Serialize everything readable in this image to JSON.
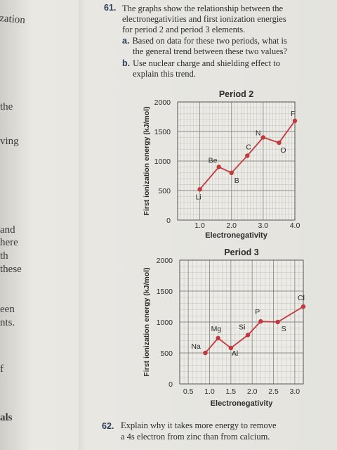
{
  "margin_fragments": [
    "zation",
    "the",
    "ving",
    "and",
    "here",
    "th",
    "these",
    "een",
    "nts.",
    "f",
    "als"
  ],
  "question_61": {
    "number": "61.",
    "stem_lines": [
      "The graphs show the relationship between the",
      "electronegativities and first ionization energies",
      "for period 2 and period 3 elements."
    ],
    "part_a_letter": "a.",
    "part_a_lines": [
      "Based on data for these two periods, what is",
      "the general trend between these two values?"
    ],
    "part_b_letter": "b.",
    "part_b_lines": [
      "Use nuclear charge and shielding effect to",
      "explain this trend."
    ]
  },
  "question_62": {
    "number": "62.",
    "lines": [
      "Explain why it takes more energy to remove",
      "a 4s electron from zinc than from calcium."
    ]
  },
  "colors": {
    "marker": "#c2393d",
    "line": "#c2393d",
    "grid": "#b9b8b3",
    "plot_bg": "#ecebe6"
  },
  "chart_data": [
    {
      "type": "line",
      "title": "Period 2",
      "xlabel": "Electronegativity",
      "ylabel": "First ionization energy (kJ/mol)",
      "xticks": [
        "1.0",
        "2.0",
        "3.0",
        "4.0"
      ],
      "xtick_values": [
        1.0,
        2.0,
        3.0,
        4.0
      ],
      "yticks": [
        "0",
        "500",
        "1000",
        "1500",
        "2000"
      ],
      "ytick_values": [
        0,
        500,
        1000,
        1500,
        2000
      ],
      "xlim": [
        0.3,
        4.0
      ],
      "ylim": [
        0,
        2000
      ],
      "grid": true,
      "series": [
        {
          "points": [
            {
              "label": "Li",
              "x": 1.0,
              "y": 520
            },
            {
              "label": "Be",
              "x": 1.6,
              "y": 900
            },
            {
              "label": "B",
              "x": 2.0,
              "y": 800
            },
            {
              "label": "C",
              "x": 2.5,
              "y": 1090
            },
            {
              "label": "N",
              "x": 3.0,
              "y": 1400
            },
            {
              "label": "O",
              "x": 3.5,
              "y": 1310
            },
            {
              "label": "F",
              "x": 4.0,
              "y": 1680
            }
          ]
        }
      ]
    },
    {
      "type": "line",
      "title": "Period 3",
      "xlabel": "Electronegativity",
      "ylabel": "First ionization energy (kJ/mol)",
      "xticks": [
        "0.5",
        "1.0",
        "1.5",
        "2.0",
        "2.5",
        "3.0"
      ],
      "xtick_values": [
        0.5,
        1.0,
        1.5,
        2.0,
        2.5,
        3.0
      ],
      "yticks": [
        "0",
        "500",
        "1000",
        "1500",
        "2000"
      ],
      "ytick_values": [
        0,
        500,
        1000,
        1500,
        2000
      ],
      "xlim": [
        0.3,
        3.2
      ],
      "ylim": [
        0,
        2000
      ],
      "grid": true,
      "series": [
        {
          "points": [
            {
              "label": "Na",
              "x": 0.9,
              "y": 500
            },
            {
              "label": "Mg",
              "x": 1.2,
              "y": 740
            },
            {
              "label": "Al",
              "x": 1.5,
              "y": 580
            },
            {
              "label": "Si",
              "x": 1.9,
              "y": 790
            },
            {
              "label": "P",
              "x": 2.2,
              "y": 1010
            },
            {
              "label": "S",
              "x": 2.6,
              "y": 1000
            },
            {
              "label": "Cl",
              "x": 3.2,
              "y": 1250
            }
          ]
        }
      ]
    }
  ]
}
